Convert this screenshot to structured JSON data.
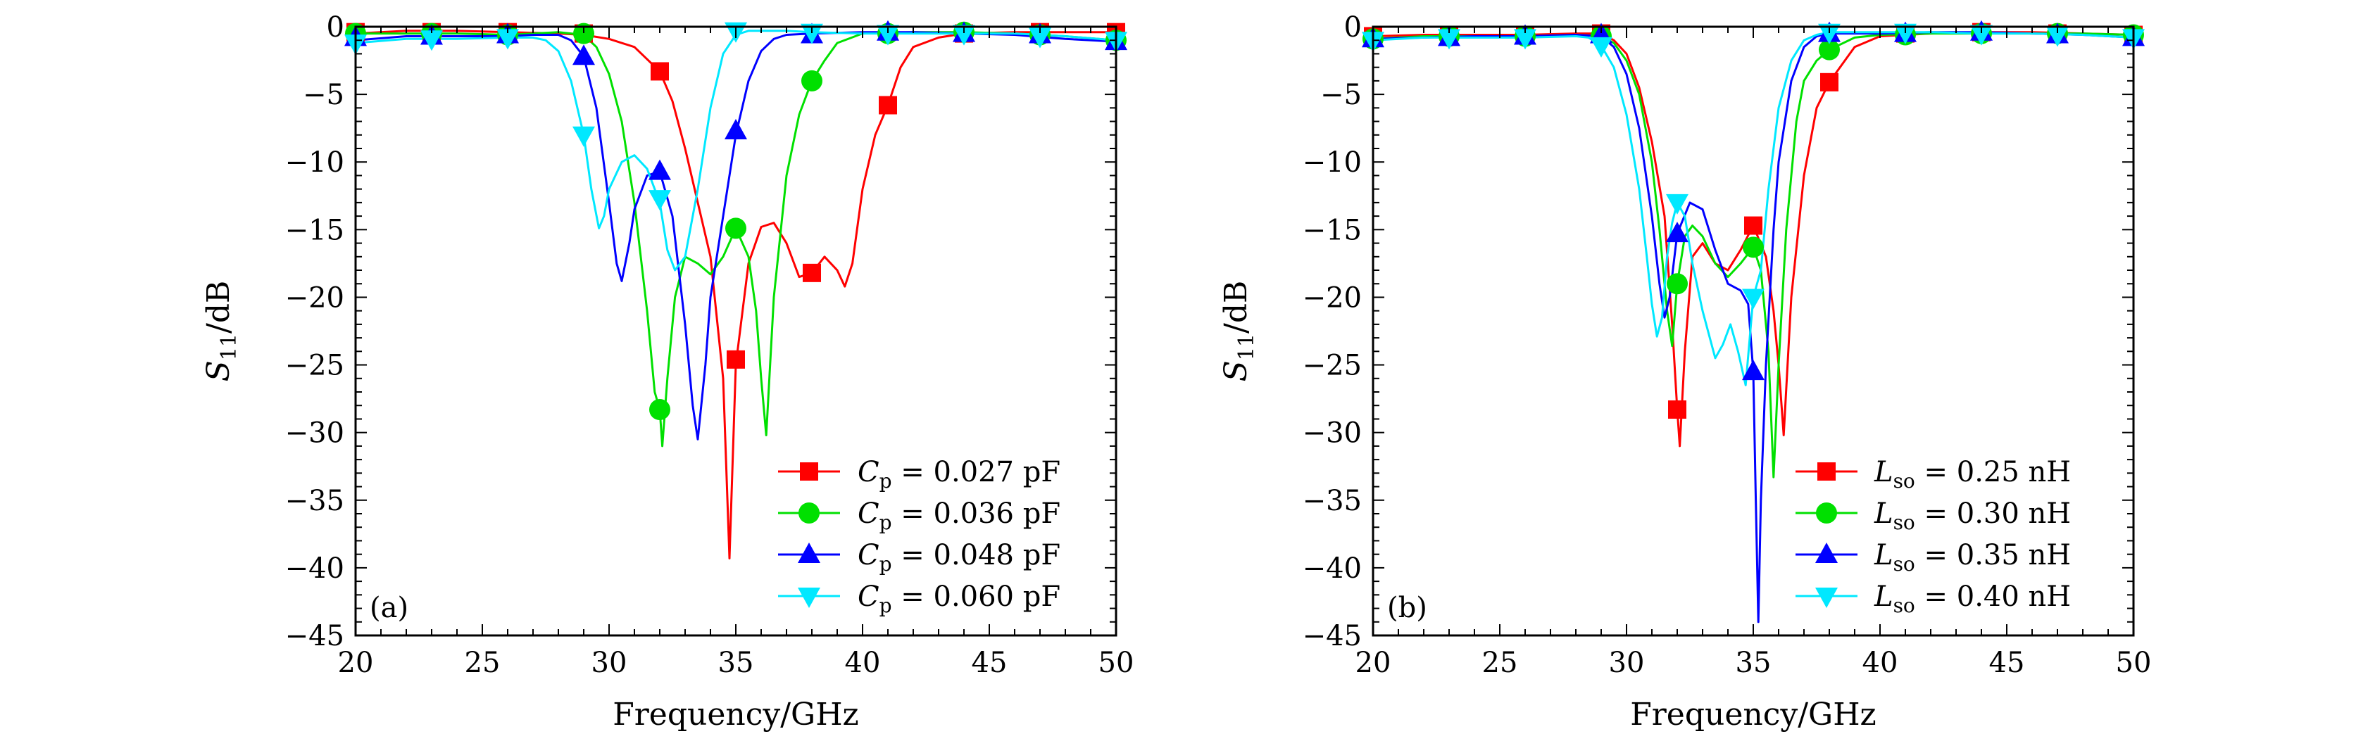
{
  "chart_data": [
    {
      "type": "line",
      "panel_label": "(a)",
      "xlabel": "Frequency/GHz",
      "ylabel": {
        "symbol": "S",
        "subscript": "11",
        "unit": "/dB"
      },
      "xlim": [
        20,
        50
      ],
      "ylim": [
        -45,
        0
      ],
      "xticks": [
        20,
        25,
        30,
        35,
        40,
        45,
        50
      ],
      "yticks": [
        0,
        -5,
        -10,
        -15,
        -20,
        -25,
        -30,
        -35,
        -40,
        -45
      ],
      "legend_position": "bottom-right",
      "marker_x": [
        20,
        23,
        26,
        29,
        32,
        35,
        38,
        41,
        44,
        47,
        50
      ],
      "series": [
        {
          "name": "C_p = 0.027 pF",
          "legend": {
            "sym": "C",
            "sub": "p",
            "rest": " = 0.027 pF"
          },
          "color": "#ff0000",
          "marker": "square",
          "x": [
            20,
            22,
            24,
            26,
            28,
            29,
            30,
            31,
            32,
            32.5,
            33,
            33.5,
            34,
            34.5,
            34.75,
            35,
            35.5,
            36,
            36.5,
            37,
            37.5,
            38,
            38.5,
            39,
            39.3,
            39.6,
            40,
            40.5,
            41,
            41.5,
            42,
            43,
            44,
            46,
            48,
            50
          ],
          "y": [
            -0.5,
            -0.3,
            -0.3,
            -0.4,
            -0.5,
            -0.6,
            -0.9,
            -1.5,
            -3.3,
            -5.5,
            -9.0,
            -13.0,
            -17.0,
            -26.0,
            -39.3,
            -25.0,
            -17.5,
            -14.8,
            -14.5,
            -16.0,
            -18.5,
            -18.2,
            -17.0,
            -18.0,
            -19.2,
            -17.5,
            -12.0,
            -8.0,
            -5.8,
            -3.0,
            -1.5,
            -0.8,
            -0.5,
            -0.4,
            -0.4,
            -0.4
          ],
          "markers": [
            -0.4,
            -0.4,
            -0.4,
            -0.5,
            -3.3,
            -24.6,
            -18.2,
            -5.8,
            -0.5,
            -0.4,
            -0.4
          ]
        },
        {
          "name": "C_p = 0.036 pF",
          "legend": {
            "sym": "C",
            "sub": "p",
            "rest": " = 0.036 pF"
          },
          "color": "#00e000",
          "marker": "circle",
          "x": [
            20,
            22,
            24,
            26,
            27,
            28,
            29,
            29.5,
            30,
            30.5,
            31,
            31.5,
            31.8,
            32,
            32.1,
            32.3,
            32.6,
            33,
            33.5,
            34,
            34.5,
            35,
            35.5,
            35.8,
            36,
            36.2,
            36.5,
            37,
            37.5,
            38,
            38.5,
            39,
            40,
            42,
            44,
            46,
            48,
            50
          ],
          "y": [
            -0.5,
            -0.5,
            -0.5,
            -0.6,
            -0.5,
            -0.4,
            -0.6,
            -1.5,
            -3.5,
            -7.0,
            -13.0,
            -21.0,
            -27.0,
            -28.3,
            -31.0,
            -26.0,
            -20.0,
            -17.0,
            -17.5,
            -18.3,
            -17.0,
            -14.9,
            -17.0,
            -21.0,
            -26.0,
            -30.2,
            -20.0,
            -11.0,
            -6.5,
            -4.0,
            -2.5,
            -1.2,
            -0.5,
            -0.4,
            -0.4,
            -0.5,
            -0.7,
            -1.0
          ],
          "markers": [
            -0.5,
            -0.5,
            -0.6,
            -0.5,
            -28.3,
            -14.9,
            -4.0,
            -0.5,
            -0.4,
            -0.6,
            -1.0
          ]
        },
        {
          "name": "C_p = 0.048 pF",
          "legend": {
            "sym": "C",
            "sub": "p",
            "rest": " = 0.048 pF"
          },
          "color": "#0000ff",
          "marker": "triangle-up",
          "x": [
            20,
            22,
            24,
            26,
            27,
            28,
            28.5,
            29,
            29.5,
            30,
            30.3,
            30.5,
            30.8,
            31,
            31.5,
            32,
            32.5,
            33,
            33.3,
            33.5,
            33.8,
            34,
            34.5,
            35,
            35.5,
            36,
            36.5,
            37,
            38,
            40,
            42,
            44,
            46,
            48,
            50
          ],
          "y": [
            -1.0,
            -0.7,
            -0.7,
            -0.7,
            -0.6,
            -0.6,
            -1.0,
            -2.2,
            -6.0,
            -13.0,
            -17.5,
            -18.8,
            -16.0,
            -13.5,
            -11.0,
            -10.7,
            -14.0,
            -22.0,
            -28.0,
            -30.5,
            -25.0,
            -20.0,
            -14.0,
            -8.0,
            -4.0,
            -1.8,
            -0.9,
            -0.6,
            -0.5,
            -0.4,
            -0.4,
            -0.5,
            -0.6,
            -0.9,
            -1.1
          ],
          "markers": [
            -0.8,
            -0.7,
            -0.6,
            -2.2,
            -10.7,
            -7.7,
            -0.6,
            -0.4,
            -0.5,
            -0.6,
            -1.1
          ]
        },
        {
          "name": "C_p = 0.060 pF",
          "legend": {
            "sym": "C",
            "sub": "p",
            "rest": " = 0.060 pF"
          },
          "color": "#00e8ff",
          "marker": "triangle-down",
          "x": [
            20,
            22,
            24,
            26,
            27,
            27.5,
            28,
            28.5,
            29,
            29.3,
            29.6,
            29.8,
            30,
            30.5,
            31,
            31.5,
            32,
            32.3,
            32.6,
            33,
            33.5,
            34,
            34.5,
            35,
            35.5,
            36,
            37,
            38,
            40,
            42,
            44,
            46,
            48,
            50
          ],
          "y": [
            -1.2,
            -0.9,
            -0.9,
            -0.8,
            -0.8,
            -1.0,
            -1.8,
            -4.0,
            -8.0,
            -12.0,
            -14.9,
            -14.0,
            -12.0,
            -10.0,
            -9.5,
            -10.5,
            -13.0,
            -16.5,
            -18.0,
            -17.0,
            -12.0,
            -6.0,
            -2.0,
            -0.6,
            -0.3,
            -0.3,
            -0.3,
            -0.4,
            -0.5,
            -0.5,
            -0.5,
            -0.5,
            -0.7,
            -1.0
          ],
          "markers": [
            -1.2,
            -0.9,
            -0.8,
            -8.0,
            -12.7,
            -0.3,
            -0.4,
            -0.5,
            -0.5,
            -0.7,
            -1.0
          ]
        }
      ]
    },
    {
      "type": "line",
      "panel_label": "(b)",
      "xlabel": "Frequency/GHz",
      "ylabel": {
        "symbol": "S",
        "subscript": "11",
        "unit": "/dB"
      },
      "xlim": [
        20,
        50
      ],
      "ylim": [
        -45,
        0
      ],
      "xticks": [
        20,
        25,
        30,
        35,
        40,
        45,
        50
      ],
      "yticks": [
        0,
        -5,
        -10,
        -15,
        -20,
        -25,
        -30,
        -35,
        -40,
        -45
      ],
      "legend_position": "bottom-right",
      "marker_x": [
        20,
        23,
        26,
        29,
        32,
        35,
        38,
        41,
        44,
        47,
        50
      ],
      "series": [
        {
          "name": "L_so = 0.25 nH",
          "legend": {
            "sym": "L",
            "sub": "so",
            "rest": " = 0.25 nH"
          },
          "color": "#ff0000",
          "marker": "square",
          "x": [
            20,
            22,
            24,
            26,
            28,
            29,
            29.5,
            30,
            30.5,
            31,
            31.5,
            31.8,
            32,
            32.1,
            32.3,
            32.6,
            33,
            33.5,
            34,
            34.5,
            35,
            35.5,
            35.8,
            36,
            36.2,
            36.5,
            37,
            37.5,
            38,
            39,
            40,
            42,
            44,
            46,
            48,
            50
          ],
          "y": [
            -0.7,
            -0.6,
            -0.6,
            -0.6,
            -0.5,
            -0.5,
            -1.0,
            -2.0,
            -4.5,
            -8.5,
            -14.0,
            -22.0,
            -28.3,
            -31.0,
            -24.0,
            -17.0,
            -16.0,
            -17.5,
            -18.0,
            -16.5,
            -14.7,
            -17.0,
            -21.0,
            -25.0,
            -30.2,
            -20.0,
            -11.0,
            -6.0,
            -4.1,
            -1.5,
            -0.7,
            -0.5,
            -0.4,
            -0.4,
            -0.5,
            -0.6
          ],
          "markers": [
            -0.7,
            -0.6,
            -0.6,
            -0.5,
            -28.3,
            -14.7,
            -4.1,
            -0.5,
            -0.4,
            -0.5,
            -0.6
          ]
        },
        {
          "name": "L_so = 0.30 nH",
          "legend": {
            "sym": "L",
            "sub": "so",
            "rest": " = 0.30 nH"
          },
          "color": "#00e000",
          "marker": "circle",
          "x": [
            20,
            22,
            24,
            26,
            28,
            29,
            29.5,
            30,
            30.5,
            31,
            31.3,
            31.6,
            31.8,
            32,
            32.3,
            32.6,
            33,
            33.5,
            34,
            34.5,
            35,
            35.3,
            35.6,
            35.8,
            36,
            36.3,
            36.7,
            37,
            37.5,
            38,
            39,
            40,
            42,
            44,
            46,
            48,
            50
          ],
          "y": [
            -0.9,
            -0.7,
            -0.7,
            -0.7,
            -0.6,
            -0.7,
            -1.2,
            -2.5,
            -5.0,
            -10.0,
            -15.0,
            -21.0,
            -23.6,
            -19.0,
            -15.5,
            -14.7,
            -15.5,
            -17.5,
            -18.5,
            -17.5,
            -16.3,
            -18.0,
            -24.0,
            -33.3,
            -25.0,
            -15.0,
            -7.0,
            -4.0,
            -2.5,
            -1.7,
            -0.8,
            -0.6,
            -0.5,
            -0.5,
            -0.5,
            -0.5,
            -0.6
          ],
          "markers": [
            -0.9,
            -0.7,
            -0.7,
            -0.7,
            -19.0,
            -16.3,
            -1.7,
            -0.6,
            -0.5,
            -0.5,
            -0.6
          ]
        },
        {
          "name": "L_so = 0.35 nH",
          "legend": {
            "sym": "L",
            "sub": "so",
            "rest": " = 0.35 nH"
          },
          "color": "#0000ff",
          "marker": "triangle-up",
          "x": [
            20,
            22,
            24,
            26,
            28,
            29,
            29.5,
            30,
            30.5,
            31,
            31.3,
            31.5,
            31.7,
            32,
            32.5,
            33,
            33.5,
            34,
            34.5,
            34.8,
            35,
            35.1,
            35.2,
            35.3,
            35.5,
            35.8,
            36,
            36.5,
            37,
            37.5,
            38,
            40,
            42,
            44,
            46,
            48,
            50
          ],
          "y": [
            -0.9,
            -0.8,
            -0.7,
            -0.7,
            -0.6,
            -0.7,
            -1.5,
            -3.5,
            -7.5,
            -14.0,
            -19.0,
            -21.5,
            -20.0,
            -15.3,
            -13.0,
            -13.5,
            -16.5,
            -19.0,
            -19.5,
            -20.5,
            -25.5,
            -35.0,
            -44.0,
            -35.0,
            -25.0,
            -15.0,
            -10.0,
            -4.0,
            -1.5,
            -0.7,
            -0.5,
            -0.5,
            -0.4,
            -0.4,
            -0.5,
            -0.6,
            -0.8
          ],
          "markers": [
            -0.9,
            -0.8,
            -0.7,
            -0.6,
            -15.3,
            -25.5,
            -0.5,
            -0.5,
            -0.4,
            -0.6,
            -0.8
          ]
        },
        {
          "name": "L_so = 0.40 nH",
          "legend": {
            "sym": "L",
            "sub": "so",
            "rest": " = 0.40 nH"
          },
          "color": "#00e8ff",
          "marker": "triangle-down",
          "x": [
            20,
            22,
            24,
            26,
            28,
            28.5,
            29,
            29.5,
            30,
            30.5,
            30.8,
            31,
            31.2,
            31.4,
            31.6,
            31.8,
            32,
            32.3,
            32.6,
            33,
            33.5,
            33.8,
            34.1,
            34.4,
            34.7,
            35,
            35.3,
            35.6,
            36,
            36.5,
            37,
            37.5,
            38,
            40,
            42,
            44,
            46,
            48,
            50
          ],
          "y": [
            -1.0,
            -0.8,
            -0.8,
            -0.8,
            -0.7,
            -0.8,
            -1.4,
            -3.0,
            -6.5,
            -12.0,
            -17.0,
            -20.5,
            -22.9,
            -21.5,
            -17.0,
            -14.5,
            -13.0,
            -14.0,
            -17.5,
            -21.0,
            -24.5,
            -23.5,
            -22.0,
            -24.0,
            -26.5,
            -20.0,
            -18.0,
            -12.0,
            -6.0,
            -2.5,
            -1.0,
            -0.6,
            -0.4,
            -0.4,
            -0.4,
            -0.5,
            -0.5,
            -0.6,
            -0.8
          ],
          "markers": [
            -1.0,
            -0.8,
            -0.8,
            -1.4,
            -13.0,
            -20.0,
            -0.4,
            -0.4,
            -0.5,
            -0.6,
            -0.8
          ]
        }
      ]
    }
  ]
}
